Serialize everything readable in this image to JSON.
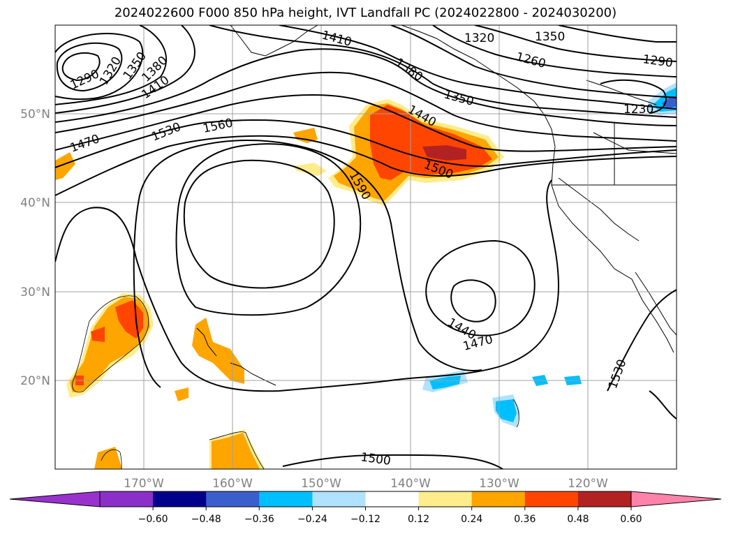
{
  "title": "2024022600 F000 850 hPa height, IVT Landfall PC (2024022800 - 2024030200)",
  "map": {
    "lon_range": [
      -180,
      -110
    ],
    "lat_range": [
      10,
      60
    ],
    "lon_labels": [
      "170°W",
      "160°W",
      "150°W",
      "140°W",
      "130°W",
      "120°W"
    ],
    "lat_labels": [
      "50°N",
      "40°N",
      "30°N",
      "20°N"
    ],
    "contour_labels": [
      "1290",
      "1320",
      "1350",
      "1380",
      "1410",
      "1410",
      "1380",
      "1440",
      "1320",
      "1350",
      "1260",
      "1290",
      "1350",
      "1230",
      "1470",
      "1530",
      "1560",
      "1590",
      "1500",
      "1440",
      "1470",
      "1530",
      "1500"
    ]
  },
  "colorbar": {
    "ticks": [
      "−0.60",
      "−0.48",
      "−0.36",
      "−0.24",
      "−0.12",
      "0.12",
      "0.24",
      "0.36",
      "0.48",
      "0.60"
    ],
    "colors": [
      "#9932cc",
      "#8b2fc9",
      "#00008b",
      "#3a5fcd",
      "#00bfff",
      "#b0e2ff",
      "#ffffff",
      "#ffec8b",
      "#ffa500",
      "#ff4500",
      "#b22222",
      "#ff82ab"
    ]
  }
}
